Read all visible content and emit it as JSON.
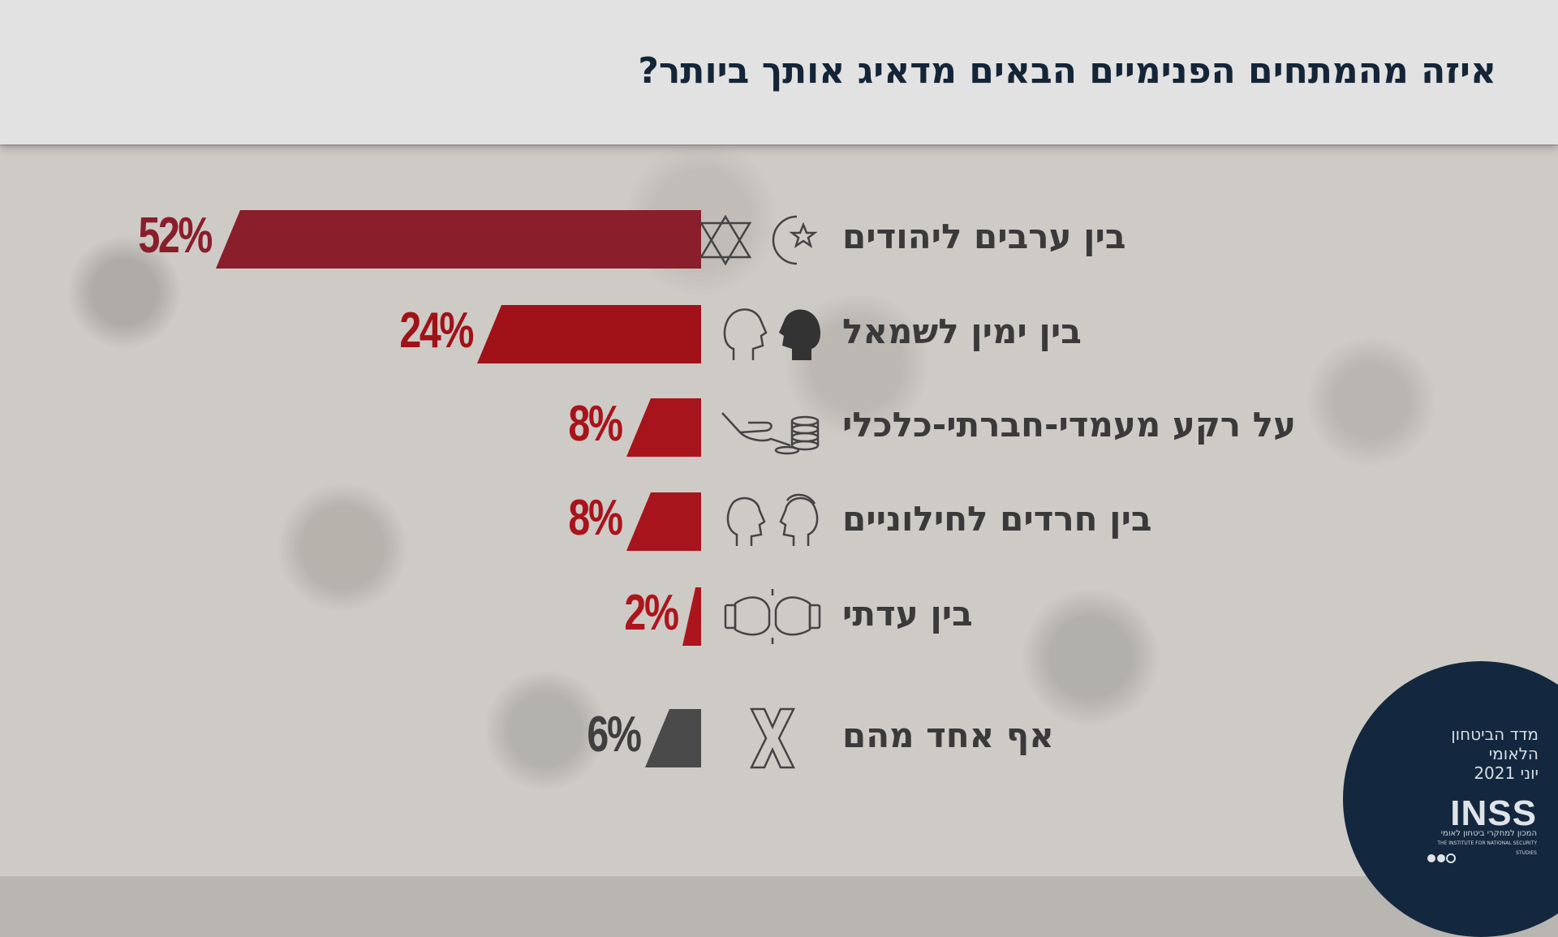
{
  "title": "איזה מהמתחים הפנימיים הבאים מדאיג אותך ביותר?",
  "chart_data": {
    "type": "bar",
    "orientation": "horizontal",
    "categories": [
      "בין ערבים ליהודים",
      "בין ימין לשמאל",
      "על רקע מעמדי-חברתי-כלכלי",
      "בין חרדים לחילוניים",
      "בין עדתי",
      "אף אחד מהם"
    ],
    "values": [
      52,
      24,
      8,
      8,
      2,
      6
    ],
    "value_labels": [
      "52%",
      "24%",
      "8%",
      "8%",
      "2%",
      "6%"
    ],
    "unit": "%",
    "colors": [
      "#8a1e2b",
      "#a01218",
      "#a8141b",
      "#a8141b",
      "#ad151c",
      "#4a4a4a"
    ],
    "icons": [
      "star-of-david-crescent-icon",
      "two-heads-icon",
      "hand-coins-icon",
      "two-faces-icon",
      "boxing-gloves-icon",
      "x-icon"
    ]
  },
  "footer": {
    "index_name": "מדד הביטחון הלאומי",
    "date": "יוני 2021",
    "logo": "INSS",
    "institute": "המכון למחקרי ביטחון לאומי",
    "institute_en": "THE INSTITUTE FOR NATIONAL SECURITY STUDIES"
  },
  "colors": {
    "header_bg": "#e2e2e2",
    "title": "#142538",
    "corner": "#13283e"
  }
}
